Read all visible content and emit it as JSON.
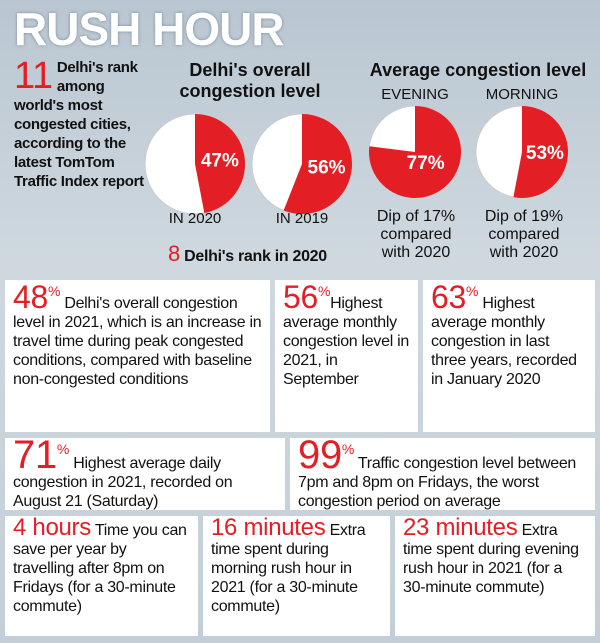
{
  "header": {
    "title": "RUSH HOUR"
  },
  "rank_note": {
    "value": "11",
    "text": "Delhi's rank among world's most congested cities, according to the latest TomTom Traffic Index report"
  },
  "overall": {
    "heading": "Delhi's overall congestion level",
    "pies": [
      {
        "value": 47,
        "label": "47%",
        "caption": "IN 2020"
      },
      {
        "value": 56,
        "label": "56%",
        "caption": "IN 2019"
      }
    ],
    "rank_value": "8",
    "rank_text": "Delhi's rank in 2020"
  },
  "average": {
    "heading": "Average congestion level",
    "pies": [
      {
        "period": "EVENING",
        "value": 77,
        "label": "77%",
        "caption": "Dip of 17% compared with 2020"
      },
      {
        "period": "MORNING",
        "value": 53,
        "label": "53%",
        "caption": "Dip of 19% compared with 2020"
      }
    ]
  },
  "stats": [
    {
      "value": "48",
      "unit": "%",
      "text": "Delhi's overall congestion level in 2021, which is an increase in travel time during peak congested conditions, compared with baseline non-congested conditions"
    },
    {
      "value": "56",
      "unit": "%",
      "text": "Highest average monthly congestion level in 2021, in September"
    },
    {
      "value": "63",
      "unit": "%",
      "text": "Highest average monthly congestion in last three years, recorded in January 2020"
    },
    {
      "value": "71",
      "unit": "%",
      "text": "Highest average daily congestion in 2021, recorded on August 21 (Saturday)"
    },
    {
      "value": "99",
      "unit": "%",
      "text": "Traffic congestion level between 7pm and 8pm on Fridays, the worst congestion period on average"
    },
    {
      "value": "4 hours",
      "text": "Time you can save per year by travelling after 8pm on Fridays (for a 30-minute commute)"
    },
    {
      "value": "16 minutes",
      "text": "Extra time spent during morning rush hour in 2021 (for a 30-minute commute)"
    },
    {
      "value": "23 minutes",
      "text": "Extra time spent during evening rush hour in 2021 (for a 30-minute commute)"
    }
  ]
}
